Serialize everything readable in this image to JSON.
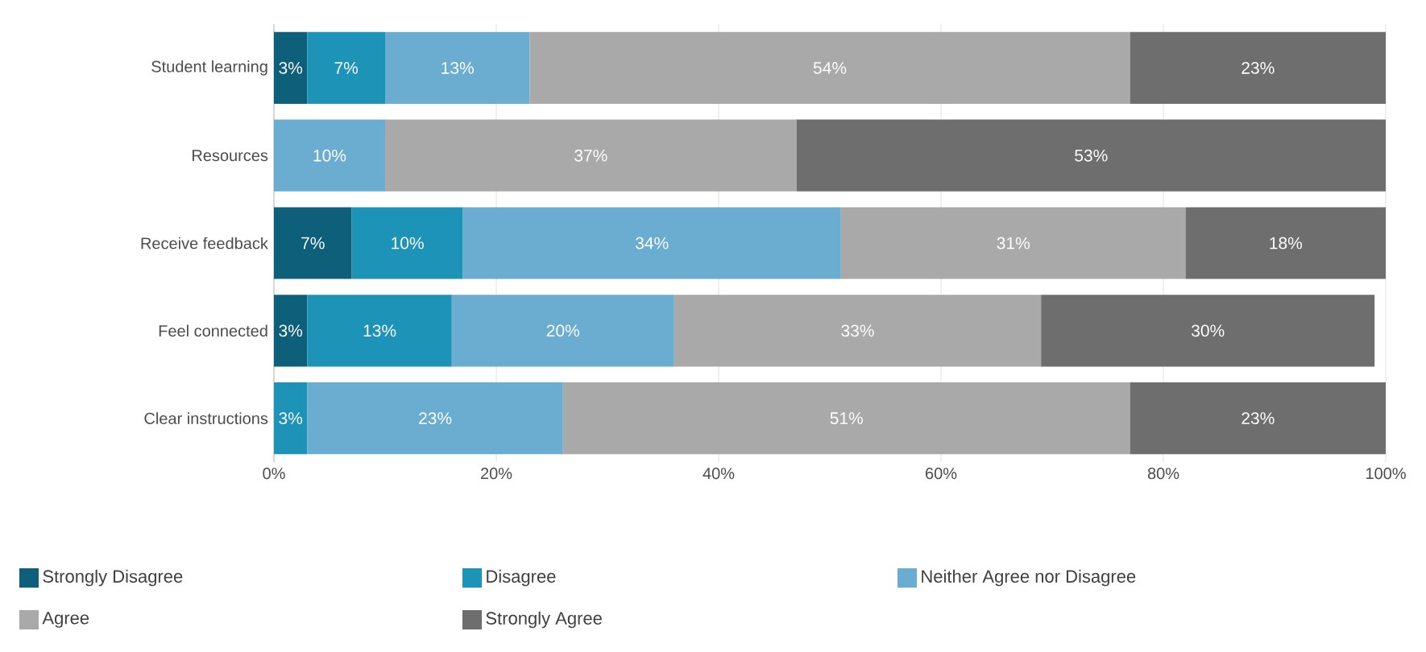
{
  "chart_data": {
    "type": "bar",
    "orientation": "horizontal",
    "stacked": true,
    "categories": [
      "Student learning",
      "Resources",
      "Receive feedback",
      "Feel connected",
      "Clear instructions"
    ],
    "series": [
      {
        "name": "Strongly Disagree",
        "color": "#0e5f7a",
        "values": [
          3,
          null,
          7,
          3,
          null
        ],
        "value_labels": [
          "3%",
          null,
          "7%",
          "3%",
          null
        ]
      },
      {
        "name": "Disagree",
        "color": "#1d93b8",
        "values": [
          7,
          null,
          10,
          13,
          3
        ],
        "value_labels": [
          "7%",
          null,
          "10%",
          "13%",
          "3%"
        ]
      },
      {
        "name": "Neither Agree nor Disagree",
        "color": "#6aadd0",
        "values": [
          13,
          10,
          34,
          20,
          23
        ],
        "value_labels": [
          "13%",
          "10%",
          "34%",
          "20%",
          "23%"
        ]
      },
      {
        "name": "Agree",
        "color": "#a9a9a9",
        "values": [
          54,
          37,
          31,
          33,
          51
        ],
        "value_labels": [
          "54%",
          "37%",
          "31%",
          "33%",
          "51%"
        ]
      },
      {
        "name": "Strongly Agree",
        "color": "#6e6e6e",
        "values": [
          23,
          53,
          18,
          30,
          23
        ],
        "value_labels": [
          "23%",
          "53%",
          "18%",
          "30%",
          "23%"
        ]
      }
    ],
    "xlim": [
      0,
      100
    ],
    "xticks": [
      {
        "value": 0,
        "label": "0%"
      },
      {
        "value": 20,
        "label": "20%"
      },
      {
        "value": 40,
        "label": "40%"
      },
      {
        "value": 60,
        "label": "60%"
      },
      {
        "value": 80,
        "label": "80%"
      },
      {
        "value": 100,
        "label": "100%"
      }
    ],
    "grid": "x",
    "legend": "bottom"
  }
}
